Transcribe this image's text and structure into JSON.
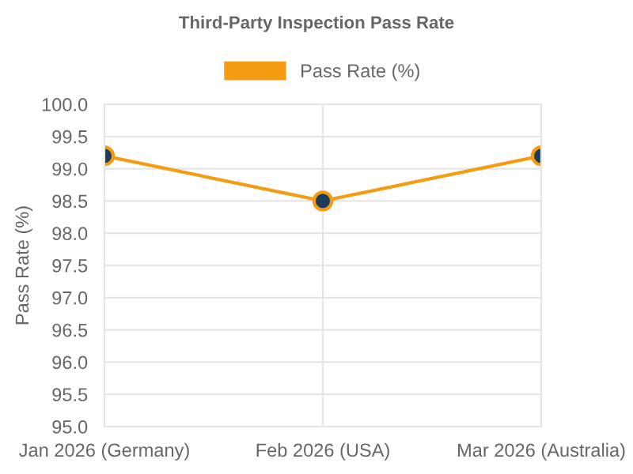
{
  "chart_data": {
    "type": "line",
    "title": "Third-Party Inspection Pass Rate",
    "ylabel": "Pass Rate (%)",
    "categories": [
      "Jan 2026 (Germany)",
      "Feb 2026 (USA)",
      "Mar 2026 (Australia)"
    ],
    "series": [
      {
        "name": "Pass Rate (%)",
        "color": "#f39c12",
        "values": [
          99.2,
          98.5,
          99.2
        ]
      }
    ],
    "ylim": [
      95.0,
      100.0
    ],
    "yticks": [
      {
        "value": 95.0,
        "label": "95.0"
      },
      {
        "value": 95.5,
        "label": "95.5"
      },
      {
        "value": 96.0,
        "label": "96.0"
      },
      {
        "value": 96.5,
        "label": "96.5"
      },
      {
        "value": 97.0,
        "label": "97.0"
      },
      {
        "value": 97.5,
        "label": "97.5"
      },
      {
        "value": 98.0,
        "label": "98.0"
      },
      {
        "value": 98.5,
        "label": "98.5"
      },
      {
        "value": 99.0,
        "label": "99.0"
      },
      {
        "value": 99.5,
        "label": "99.5"
      },
      {
        "value": 100.0,
        "label": "100.0"
      }
    ],
    "grid": true,
    "legend": "top",
    "marker": "circle",
    "line_style": "solid"
  }
}
